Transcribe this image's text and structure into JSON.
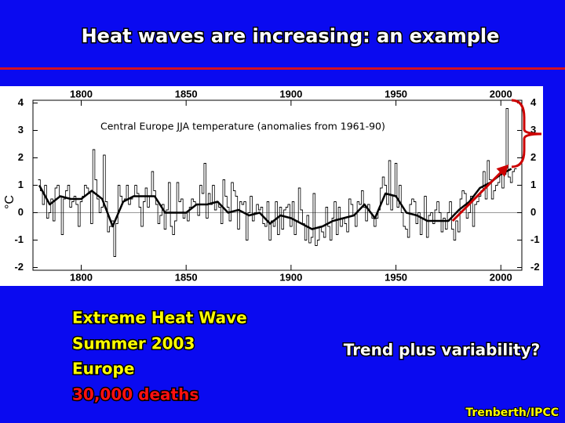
{
  "title": "Heat waves are increasing: an example",
  "notes": [
    "Extreme Heat Wave",
    "Summer 2003",
    "Europe",
    "30,000 deaths"
  ],
  "question": "Trend plus variability?",
  "credit": "Trenberth/IPCC",
  "chart_data": {
    "type": "line",
    "title": "Central Europe JJA temperature (anomalies from 1961-90)",
    "ylabel": "°C",
    "xlim": [
      1777,
      2010
    ],
    "xticks": [
      1800,
      1850,
      1900,
      1950,
      2000
    ],
    "ylim": [
      -2.1,
      4.1
    ],
    "yticks": [
      -2,
      -1,
      0,
      1,
      2,
      3,
      4
    ],
    "series": [
      {
        "style": "step",
        "color": "#000000",
        "x": [
          1780,
          1781,
          1782,
          1783,
          1784,
          1785,
          1786,
          1787,
          1788,
          1789,
          1790,
          1791,
          1792,
          1793,
          1794,
          1795,
          1796,
          1797,
          1798,
          1799,
          1800,
          1801,
          1802,
          1803,
          1804,
          1805,
          1806,
          1807,
          1808,
          1809,
          1810,
          1811,
          1812,
          1813,
          1814,
          1815,
          1816,
          1817,
          1818,
          1819,
          1820,
          1821,
          1822,
          1823,
          1824,
          1825,
          1826,
          1827,
          1828,
          1829,
          1830,
          1831,
          1832,
          1833,
          1834,
          1835,
          1836,
          1837,
          1838,
          1839,
          1840,
          1841,
          1842,
          1843,
          1844,
          1845,
          1846,
          1847,
          1848,
          1849,
          1850,
          1851,
          1852,
          1853,
          1854,
          1855,
          1856,
          1857,
          1858,
          1859,
          1860,
          1861,
          1862,
          1863,
          1864,
          1865,
          1866,
          1867,
          1868,
          1869,
          1870,
          1871,
          1872,
          1873,
          1874,
          1875,
          1876,
          1877,
          1878,
          1879,
          1880,
          1881,
          1882,
          1883,
          1884,
          1885,
          1886,
          1887,
          1888,
          1889,
          1890,
          1891,
          1892,
          1893,
          1894,
          1895,
          1896,
          1897,
          1898,
          1899,
          1900,
          1901,
          1902,
          1903,
          1904,
          1905,
          1906,
          1907,
          1908,
          1909,
          1910,
          1911,
          1912,
          1913,
          1914,
          1915,
          1916,
          1917,
          1918,
          1919,
          1920,
          1921,
          1922,
          1923,
          1924,
          1925,
          1926,
          1927,
          1928,
          1929,
          1930,
          1931,
          1932,
          1933,
          1934,
          1935,
          1936,
          1937,
          1938,
          1939,
          1940,
          1941,
          1942,
          1943,
          1944,
          1945,
          1946,
          1947,
          1948,
          1949,
          1950,
          1951,
          1952,
          1953,
          1954,
          1955,
          1956,
          1957,
          1958,
          1959,
          1960,
          1961,
          1962,
          1963,
          1964,
          1965,
          1966,
          1967,
          1968,
          1969,
          1970,
          1971,
          1972,
          1973,
          1974,
          1975,
          1976,
          1977,
          1978,
          1979,
          1980,
          1981,
          1982,
          1983,
          1984,
          1985,
          1986,
          1987,
          1988,
          1989,
          1990,
          1991,
          1992,
          1993,
          1994,
          1995,
          1996,
          1997,
          1998,
          1999,
          2000,
          2001,
          2002,
          2003,
          2004,
          2005,
          2006,
          2007
        ],
        "values": [
          1.2,
          0.8,
          0.3,
          1.0,
          -0.2,
          0.0,
          0.5,
          -0.3,
          0.9,
          1.0,
          0.6,
          -0.8,
          0.5,
          0.8,
          1.0,
          0.2,
          0.4,
          0.6,
          0.3,
          -0.5,
          0.4,
          0.6,
          1.0,
          0.9,
          0.7,
          -0.4,
          2.3,
          1.2,
          0.5,
          0.0,
          0.2,
          2.1,
          0.4,
          -0.7,
          -0.5,
          -0.3,
          -1.6,
          -0.4,
          1.0,
          0.6,
          0.4,
          0.5,
          1.0,
          0.3,
          0.5,
          0.6,
          1.0,
          0.7,
          0.2,
          -0.5,
          0.4,
          0.9,
          0.2,
          0.6,
          1.5,
          0.8,
          0.3,
          -0.4,
          -0.1,
          0.3,
          -0.6,
          0.1,
          1.1,
          -0.5,
          -0.8,
          -0.3,
          1.1,
          0.4,
          0.5,
          -0.2,
          0.0,
          -0.3,
          0.2,
          0.5,
          0.4,
          0.3,
          -0.1,
          1.0,
          0.7,
          1.8,
          -0.2,
          0.7,
          0.3,
          1.0,
          0.1,
          0.4,
          0.2,
          -0.4,
          1.2,
          0.6,
          0.2,
          -0.3,
          1.1,
          0.8,
          0.6,
          -0.6,
          0.4,
          0.3,
          0.4,
          -1.0,
          0.0,
          0.6,
          -0.3,
          0.0,
          0.3,
          0.1,
          0.2,
          -0.4,
          -0.5,
          0.4,
          -1.0,
          -0.3,
          -0.5,
          0.4,
          -0.8,
          0.2,
          -0.6,
          0.1,
          0.2,
          0.3,
          -0.5,
          0.4,
          -0.8,
          -0.3,
          0.9,
          0.1,
          -0.4,
          -1.0,
          -0.1,
          -1.1,
          -0.9,
          0.7,
          -1.2,
          -1.0,
          -0.5,
          -0.7,
          -0.9,
          0.2,
          -0.5,
          -1.0,
          -0.2,
          0.4,
          -0.8,
          0.2,
          -0.5,
          -0.2,
          -0.4,
          -0.7,
          0.5,
          0.3,
          -0.1,
          -0.5,
          0.4,
          0.3,
          0.8,
          0.2,
          -0.3,
          0.3,
          0.0,
          -0.2,
          -0.5,
          -0.2,
          0.1,
          0.9,
          1.3,
          1.0,
          0.3,
          1.9,
          0.1,
          0.6,
          1.8,
          0.2,
          1.0,
          0.0,
          -0.5,
          -0.6,
          -0.9,
          0.3,
          0.5,
          0.4,
          -0.4,
          0.0,
          -0.8,
          -0.2,
          0.6,
          -0.9,
          -0.1,
          0.0,
          -0.4,
          0.1,
          0.4,
          0.0,
          -0.7,
          -0.2,
          -0.6,
          0.0,
          0.4,
          -0.6,
          -1.0,
          -0.3,
          -0.7,
          0.5,
          0.8,
          0.7,
          -0.2,
          0.0,
          0.6,
          -0.5,
          0.3,
          0.4,
          0.6,
          0.8,
          1.5,
          0.5,
          1.9,
          1.2,
          0.5,
          0.8,
          1.0,
          1.1,
          1.6,
          0.9,
          1.4,
          3.8,
          1.3,
          1.1,
          1.5,
          1.6
        ]
      },
      {
        "style": "smooth",
        "color": "#000000",
        "x": [
          1780,
          1785,
          1790,
          1795,
          1800,
          1805,
          1810,
          1815,
          1820,
          1825,
          1830,
          1835,
          1840,
          1845,
          1850,
          1855,
          1860,
          1865,
          1870,
          1875,
          1880,
          1885,
          1890,
          1895,
          1900,
          1905,
          1910,
          1915,
          1920,
          1925,
          1930,
          1935,
          1940,
          1945,
          1950,
          1955,
          1960,
          1965,
          1970,
          1975,
          1980,
          1985,
          1990,
          1995,
          2000,
          2005
        ],
        "values": [
          1.0,
          0.3,
          0.6,
          0.5,
          0.5,
          0.8,
          0.5,
          -0.5,
          0.4,
          0.6,
          0.6,
          0.6,
          0.0,
          0.0,
          0.0,
          0.3,
          0.3,
          0.4,
          0.0,
          0.1,
          -0.1,
          0.0,
          -0.4,
          -0.1,
          -0.2,
          -0.4,
          -0.6,
          -0.5,
          -0.3,
          -0.2,
          -0.1,
          0.3,
          -0.2,
          0.7,
          0.6,
          0.0,
          -0.1,
          -0.3,
          -0.3,
          -0.3,
          0.1,
          0.4,
          0.9,
          1.1,
          1.4,
          1.6
        ]
      },
      {
        "style": "arrow",
        "color": "#cc0000",
        "x": [
          1977,
          2003
        ],
        "values": [
          -0.3,
          1.7
        ]
      }
    ]
  }
}
